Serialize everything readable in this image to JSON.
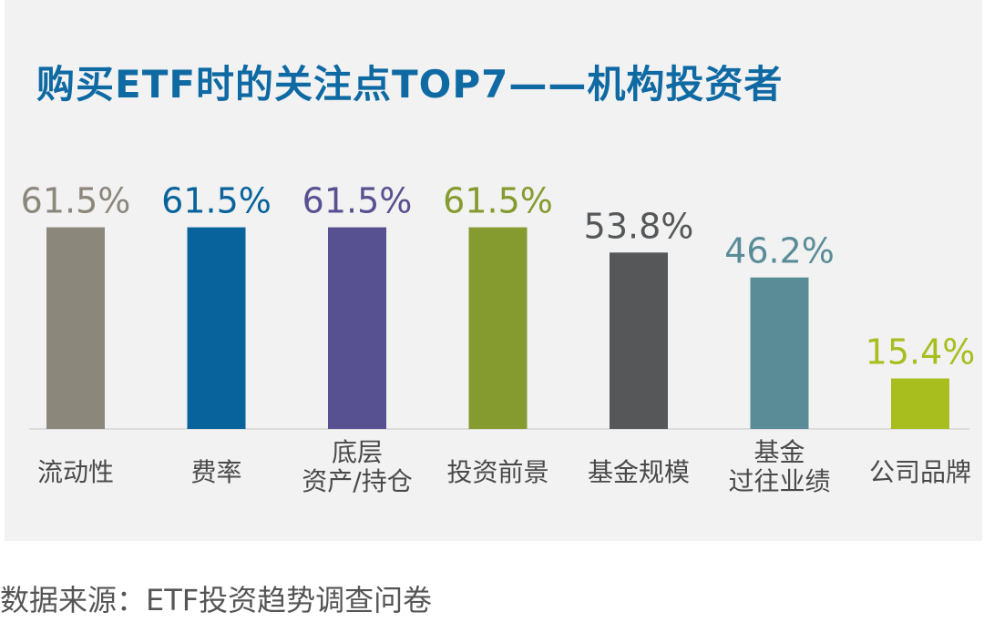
{
  "title": "购买ETF时的关注点TOP7——机构投资者",
  "source": "数据来源：ETF投资趋势调查问卷",
  "chart_data": {
    "type": "bar",
    "categories": [
      [
        "流动性"
      ],
      [
        "费率"
      ],
      [
        "底层",
        "资产/持仓"
      ],
      [
        "投资前景"
      ],
      [
        "基金规模"
      ],
      [
        "基金",
        "过往业绩"
      ],
      [
        "公司品牌"
      ]
    ],
    "values": [
      61.5,
      61.5,
      61.5,
      61.5,
      53.8,
      46.2,
      15.4
    ],
    "value_labels": [
      "61.5%",
      "61.5%",
      "61.5%",
      "61.5%",
      "53.8%",
      "46.2%",
      "15.4%"
    ],
    "colors": [
      "#8c877b",
      "#08639c",
      "#585191",
      "#859b30",
      "#555759",
      "#5a8c98",
      "#a8be1e"
    ],
    "title": "购买ETF时的关注点TOP7——机构投资者",
    "ylim": [
      0,
      100
    ],
    "grid": false,
    "legend": "none"
  }
}
